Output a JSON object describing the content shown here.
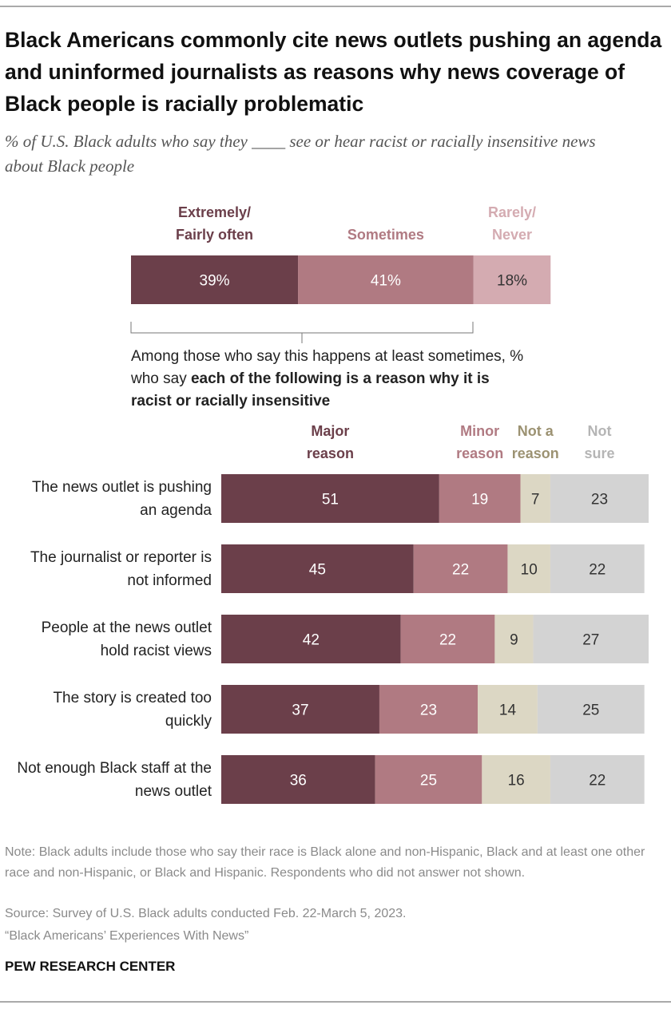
{
  "chart_data": [
    {
      "type": "stacked-bar",
      "title": "Black Americans commonly cite news outlets pushing an agenda and uninformed journalists as reasons why news coverage of Black people is racially problematic",
      "subtitle": "% of U.S. Black adults who say they ____ see or hear racist or racially insensitive news about Black people",
      "xlim": [
        0,
        100
      ],
      "series": [
        {
          "name": "Extremely/ Fairly often",
          "color": "#6b3f4a",
          "values": [
            39
          ],
          "value_labels": [
            "39%"
          ]
        },
        {
          "name": "Sometimes",
          "color": "#b07a82",
          "values": [
            41
          ],
          "value_labels": [
            "41%"
          ]
        },
        {
          "name": "Rarely/ Never",
          "color": "#d4abb1",
          "values": [
            18
          ],
          "value_labels": [
            "18%"
          ]
        }
      ]
    },
    {
      "type": "stacked-bar",
      "intro": "Among those who say this happens at least sometimes, % who say",
      "intro_bold": "each of the following is a reason why it is racist or racially insensitive",
      "xlim": [
        0,
        100
      ],
      "categories": [
        "The news outlet is pushing an agenda",
        "The journalist or reporter is not informed",
        "People at the news outlet hold racist views",
        "The story is created too quickly",
        "Not enough Black staff at the news outlet"
      ],
      "series": [
        {
          "name": "Major reason",
          "color": "#6b3f4a",
          "values": [
            51,
            45,
            42,
            37,
            36
          ]
        },
        {
          "name": "Minor reason",
          "color": "#b07a82",
          "values": [
            19,
            22,
            22,
            23,
            25
          ]
        },
        {
          "name": "Not a reason",
          "color": "#dcd7c4",
          "values": [
            7,
            10,
            9,
            14,
            16
          ]
        },
        {
          "name": "Not sure",
          "color": "#d3d3d3",
          "values": [
            23,
            22,
            27,
            25,
            22
          ]
        }
      ]
    }
  ],
  "note": "Note: Black adults include those who say their race is Black alone and non-Hispanic, Black and at least one other race and non-Hispanic, or Black and Hispanic. Respondents who did not answer not shown.",
  "source": "Source: Survey of U.S. Black adults conducted Feb. 22-March 5, 2023.",
  "report": "“Black Americans’ Experiences With News”",
  "brand": "PEW RESEARCH CENTER"
}
